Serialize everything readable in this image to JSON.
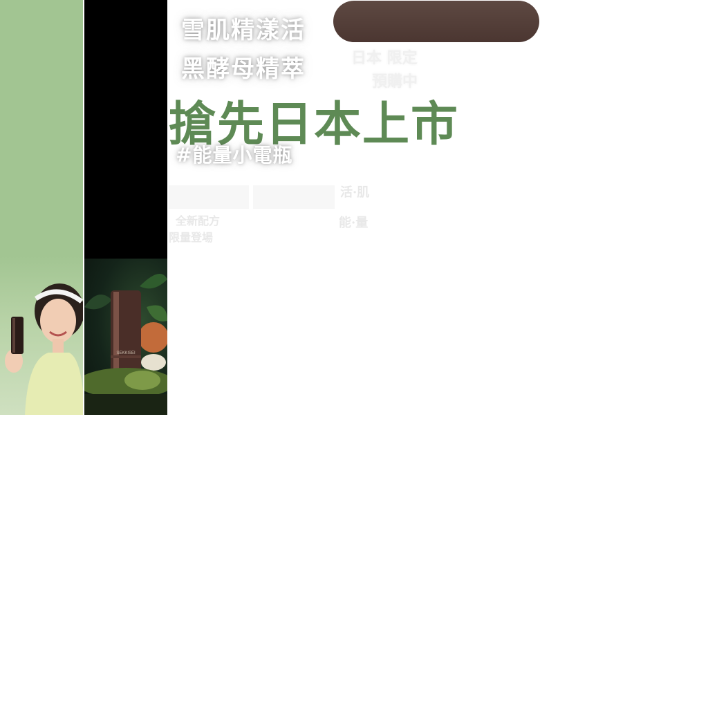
{
  "headline": {
    "line1": "雪肌精漾活",
    "line2": "黑酵母精萃"
  },
  "launch_title": "搶先日本上市",
  "hashtag": "#能量小電瓶",
  "faint_text": {
    "line1": "日本 限定",
    "line2": "預購中",
    "small1": "活·肌",
    "small2": "能·量",
    "small3": "全新配方",
    "small4": "限量登場"
  },
  "colors": {
    "green_panel": "#a2c592",
    "black_panel": "#000000",
    "title_green": "#5e8a55",
    "pill_brown": "#4b3631"
  }
}
